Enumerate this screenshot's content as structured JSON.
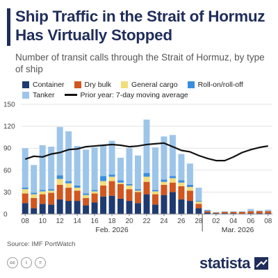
{
  "header": {
    "title": "Ship Traffic in the Strait of Hormuz Has Virtually Stopped",
    "subtitle": "Number of transit calls through the Strait of Hormuz, by type of ship"
  },
  "legend": {
    "container": "Container",
    "dry_bulk": "Dry bulk",
    "general_cargo": "General cargo",
    "roro": "Roll-on/roll-off",
    "tanker": "Tanker",
    "prior_year": "Prior year: 7-day moving average"
  },
  "footer": {
    "source": "Source: IMF PortWatch",
    "brand": "statista",
    "cc": "cc",
    "by": "i",
    "nd": "="
  },
  "colors": {
    "container": "#1f3a70",
    "dry_bulk": "#d1561f",
    "general_cargo": "#f3dc7a",
    "roro": "#3a8ee0",
    "tanker": "#9dc5ea",
    "line": "#111111"
  },
  "chart_data": {
    "type": "bar",
    "stacked": true,
    "x": [
      "08",
      "09",
      "10",
      "11",
      "12",
      "13",
      "14",
      "15",
      "16",
      "17",
      "18",
      "19",
      "20",
      "21",
      "22",
      "23",
      "24",
      "25",
      "26",
      "27",
      "28",
      "01",
      "02",
      "03",
      "04",
      "05",
      "06",
      "07",
      "08"
    ],
    "tick_labels": [
      "08",
      "10",
      "12",
      "14",
      "16",
      "18",
      "20",
      "22",
      "24",
      "26",
      "28",
      "02",
      "04",
      "06",
      "08"
    ],
    "month_labels": [
      "Feb. 2026",
      "Mar. 2026"
    ],
    "ylim": [
      0,
      150
    ],
    "yticks": [
      0,
      30,
      60,
      90,
      120,
      150
    ],
    "series": [
      {
        "name": "Container",
        "values": [
          15,
          8,
          14,
          13,
          20,
          18,
          18,
          12,
          16,
          24,
          25,
          21,
          18,
          15,
          27,
          13,
          26,
          30,
          20,
          18,
          8,
          2,
          1,
          1,
          1,
          0,
          1,
          1,
          1
        ]
      },
      {
        "name": "Dry bulk",
        "values": [
          13,
          14,
          13,
          16,
          20,
          18,
          14,
          10,
          12,
          15,
          20,
          20,
          16,
          15,
          17,
          14,
          14,
          13,
          18,
          14,
          6,
          2,
          1,
          2,
          2,
          3,
          3,
          3,
          3
        ]
      },
      {
        "name": "General cargo",
        "values": [
          6,
          5,
          4,
          3,
          8,
          6,
          4,
          4,
          3,
          6,
          6,
          2,
          5,
          2,
          7,
          4,
          4,
          6,
          5,
          5,
          3,
          0,
          0,
          0,
          0,
          0,
          0,
          0,
          0
        ]
      },
      {
        "name": "Roll-on/roll-off",
        "values": [
          2,
          2,
          2,
          2,
          5,
          3,
          3,
          2,
          2,
          7,
          3,
          3,
          2,
          2,
          5,
          2,
          3,
          3,
          3,
          3,
          1,
          1,
          0,
          0,
          0,
          0,
          0,
          0,
          0
        ]
      },
      {
        "name": "Tanker",
        "values": [
          54,
          38,
          61,
          58,
          66,
          68,
          54,
          60,
          58,
          42,
          46,
          31,
          49,
          46,
          73,
          58,
          59,
          56,
          36,
          29,
          18,
          1,
          1,
          1,
          1,
          1,
          3,
          1,
          2
        ]
      },
      {
        "name": "Prior year: 7-day moving average",
        "type": "line",
        "values": [
          75,
          79,
          78,
          82,
          84,
          88,
          89,
          92,
          93,
          94,
          95,
          94,
          92,
          93,
          95,
          96,
          97,
          92,
          87,
          85,
          80,
          76,
          73,
          73,
          78,
          84,
          88,
          91,
          93
        ]
      }
    ]
  }
}
